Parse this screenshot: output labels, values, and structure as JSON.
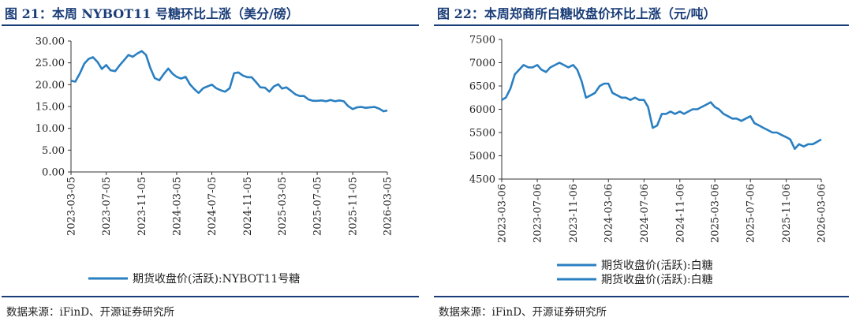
{
  "colors": {
    "title": "#1a3d78",
    "series": "#2a7fc1",
    "axis": "#333333"
  },
  "panels": {
    "left": {
      "title": "图 21：本周 NYBOT11 号糖环比上涨（美分/磅）",
      "source": "数据来源：iFinD、开源证券研究所"
    },
    "right": {
      "title": "图 22：本周郑商所白糖收盘价环比上涨（元/吨）",
      "source": "数据来源：iFinD、开源证券研究所"
    }
  },
  "chart_data": [
    {
      "type": "line",
      "title": "图 21：本周 NYBOT11 号糖环比上涨（美分/磅）",
      "xlabel": "",
      "ylabel": "",
      "ylim": [
        0,
        30
      ],
      "yticks": [
        "0.00",
        "5.00",
        "10.00",
        "15.00",
        "20.00",
        "25.00",
        "30.00"
      ],
      "xlim": [
        "2023-03-05",
        "2026-03-05"
      ],
      "xticks": [
        "2023-03-05",
        "2023-07-05",
        "2023-11-05",
        "2024-03-05",
        "2024-07-05",
        "2024-11-05",
        "2025-03-05",
        "2025-07-05",
        "2025-11-05",
        "2026-03-05"
      ],
      "legend_position": "bottom",
      "series": [
        {
          "name": "期货收盘价(活跃):NYBOT11号糖",
          "color": "#2a7fc1",
          "points": [
            [
              "2023-03-05",
              20.9
            ],
            [
              "2023-03-20",
              20.7
            ],
            [
              "2023-04-05",
              22.6
            ],
            [
              "2023-04-20",
              24.8
            ],
            [
              "2023-05-05",
              25.9
            ],
            [
              "2023-05-20",
              26.3
            ],
            [
              "2023-06-05",
              25.2
            ],
            [
              "2023-06-20",
              23.6
            ],
            [
              "2023-07-05",
              24.5
            ],
            [
              "2023-07-20",
              23.3
            ],
            [
              "2023-08-05",
              23.1
            ],
            [
              "2023-08-20",
              24.4
            ],
            [
              "2023-09-05",
              25.6
            ],
            [
              "2023-09-20",
              26.8
            ],
            [
              "2023-10-05",
              26.4
            ],
            [
              "2023-10-20",
              27.1
            ],
            [
              "2023-11-05",
              27.7
            ],
            [
              "2023-11-20",
              26.8
            ],
            [
              "2023-12-05",
              23.8
            ],
            [
              "2023-12-20",
              21.5
            ],
            [
              "2024-01-05",
              21.0
            ],
            [
              "2024-01-20",
              22.4
            ],
            [
              "2024-02-05",
              23.7
            ],
            [
              "2024-02-20",
              22.5
            ],
            [
              "2024-03-05",
              21.8
            ],
            [
              "2024-03-20",
              21.4
            ],
            [
              "2024-04-05",
              21.8
            ],
            [
              "2024-04-20",
              20.1
            ],
            [
              "2024-05-05",
              19.0
            ],
            [
              "2024-05-20",
              18.1
            ],
            [
              "2024-06-05",
              19.2
            ],
            [
              "2024-06-20",
              19.6
            ],
            [
              "2024-07-05",
              20.0
            ],
            [
              "2024-07-20",
              19.2
            ],
            [
              "2024-08-05",
              18.7
            ],
            [
              "2024-08-20",
              18.4
            ],
            [
              "2024-09-05",
              19.2
            ],
            [
              "2024-09-20",
              22.6
            ],
            [
              "2024-10-05",
              22.8
            ],
            [
              "2024-10-20",
              22.1
            ],
            [
              "2024-11-05",
              21.7
            ],
            [
              "2024-11-20",
              21.7
            ],
            [
              "2024-12-05",
              20.6
            ],
            [
              "2024-12-20",
              19.4
            ],
            [
              "2025-01-05",
              19.3
            ],
            [
              "2025-01-20",
              18.4
            ],
            [
              "2025-02-05",
              19.6
            ],
            [
              "2025-02-20",
              20.1
            ],
            [
              "2025-03-05",
              19.1
            ],
            [
              "2025-03-20",
              19.4
            ],
            [
              "2025-04-05",
              18.6
            ],
            [
              "2025-04-20",
              17.8
            ],
            [
              "2025-05-05",
              17.4
            ],
            [
              "2025-05-20",
              17.4
            ],
            [
              "2025-06-05",
              16.6
            ],
            [
              "2025-06-20",
              16.3
            ],
            [
              "2025-07-05",
              16.3
            ],
            [
              "2025-07-20",
              16.4
            ],
            [
              "2025-08-05",
              16.2
            ],
            [
              "2025-08-20",
              16.5
            ],
            [
              "2025-09-05",
              16.2
            ],
            [
              "2025-09-20",
              16.4
            ],
            [
              "2025-10-05",
              16.2
            ],
            [
              "2025-10-20",
              15.1
            ],
            [
              "2025-11-05",
              14.4
            ],
            [
              "2025-11-20",
              14.8
            ],
            [
              "2025-12-05",
              14.9
            ],
            [
              "2025-12-20",
              14.7
            ],
            [
              "2026-01-05",
              14.8
            ],
            [
              "2026-01-20",
              14.9
            ],
            [
              "2026-02-05",
              14.5
            ],
            [
              "2026-02-20",
              13.9
            ],
            [
              "2026-03-05",
              14.1
            ]
          ]
        }
      ]
    },
    {
      "type": "line",
      "title": "图 22：本周郑商所白糖收盘价环比上涨（元/吨）",
      "xlabel": "",
      "ylabel": "",
      "ylim": [
        4500,
        7500
      ],
      "yticks": [
        "4500",
        "5000",
        "5500",
        "6000",
        "6500",
        "7000",
        "7500"
      ],
      "xlim": [
        "2023-03-06",
        "2026-03-06"
      ],
      "xticks": [
        "2023-03-06",
        "2023-07-06",
        "2023-11-06",
        "2024-03-06",
        "2024-07-06",
        "2024-11-06",
        "2025-03-06",
        "2025-07-06",
        "2025-11-06",
        "2026-03-06"
      ],
      "legend_position": "bottom",
      "legend_entries": [
        "期货收盘价(活跃):白糖",
        "期货收盘价(活跃):白糖"
      ],
      "series": [
        {
          "name": "期货收盘价(活跃):白糖",
          "color": "#2a7fc1",
          "points": [
            [
              "2023-03-06",
              6200
            ],
            [
              "2023-03-20",
              6250
            ],
            [
              "2023-04-05",
              6450
            ],
            [
              "2023-04-20",
              6750
            ],
            [
              "2023-05-05",
              6850
            ],
            [
              "2023-05-20",
              6950
            ],
            [
              "2023-06-05",
              6900
            ],
            [
              "2023-06-20",
              6900
            ],
            [
              "2023-07-06",
              6950
            ],
            [
              "2023-07-20",
              6850
            ],
            [
              "2023-08-05",
              6800
            ],
            [
              "2023-08-20",
              6900
            ],
            [
              "2023-09-05",
              6950
            ],
            [
              "2023-09-20",
              7000
            ],
            [
              "2023-10-05",
              6950
            ],
            [
              "2023-10-20",
              6900
            ],
            [
              "2023-11-06",
              6950
            ],
            [
              "2023-11-20",
              6850
            ],
            [
              "2023-12-05",
              6600
            ],
            [
              "2023-12-20",
              6250
            ],
            [
              "2024-01-05",
              6300
            ],
            [
              "2024-01-20",
              6350
            ],
            [
              "2024-02-05",
              6500
            ],
            [
              "2024-02-20",
              6550
            ],
            [
              "2024-03-06",
              6550
            ],
            [
              "2024-03-20",
              6350
            ],
            [
              "2024-04-05",
              6300
            ],
            [
              "2024-04-20",
              6250
            ],
            [
              "2024-05-05",
              6250
            ],
            [
              "2024-05-20",
              6200
            ],
            [
              "2024-06-05",
              6250
            ],
            [
              "2024-06-20",
              6200
            ],
            [
              "2024-07-06",
              6200
            ],
            [
              "2024-07-20",
              6050
            ],
            [
              "2024-08-05",
              5600
            ],
            [
              "2024-08-20",
              5650
            ],
            [
              "2024-09-05",
              5900
            ],
            [
              "2024-09-20",
              5900
            ],
            [
              "2024-10-05",
              5950
            ],
            [
              "2024-10-20",
              5900
            ],
            [
              "2024-11-06",
              5950
            ],
            [
              "2024-11-20",
              5900
            ],
            [
              "2024-12-05",
              5950
            ],
            [
              "2024-12-20",
              6000
            ],
            [
              "2025-01-05",
              6000
            ],
            [
              "2025-01-20",
              6050
            ],
            [
              "2025-02-05",
              6100
            ],
            [
              "2025-02-20",
              6150
            ],
            [
              "2025-03-06",
              6050
            ],
            [
              "2025-03-20",
              6000
            ],
            [
              "2025-04-05",
              5900
            ],
            [
              "2025-04-20",
              5850
            ],
            [
              "2025-05-05",
              5800
            ],
            [
              "2025-05-20",
              5800
            ],
            [
              "2025-06-05",
              5750
            ],
            [
              "2025-06-20",
              5800
            ],
            [
              "2025-07-06",
              5850
            ],
            [
              "2025-07-20",
              5700
            ],
            [
              "2025-08-05",
              5650
            ],
            [
              "2025-08-20",
              5600
            ],
            [
              "2025-09-05",
              5550
            ],
            [
              "2025-09-20",
              5500
            ],
            [
              "2025-10-05",
              5500
            ],
            [
              "2025-10-20",
              5450
            ],
            [
              "2025-11-06",
              5400
            ],
            [
              "2025-11-20",
              5350
            ],
            [
              "2025-12-05",
              5150
            ],
            [
              "2025-12-20",
              5250
            ],
            [
              "2026-01-05",
              5200
            ],
            [
              "2026-01-20",
              5250
            ],
            [
              "2026-02-05",
              5250
            ],
            [
              "2026-02-20",
              5300
            ],
            [
              "2026-03-06",
              5350
            ]
          ]
        }
      ]
    }
  ]
}
